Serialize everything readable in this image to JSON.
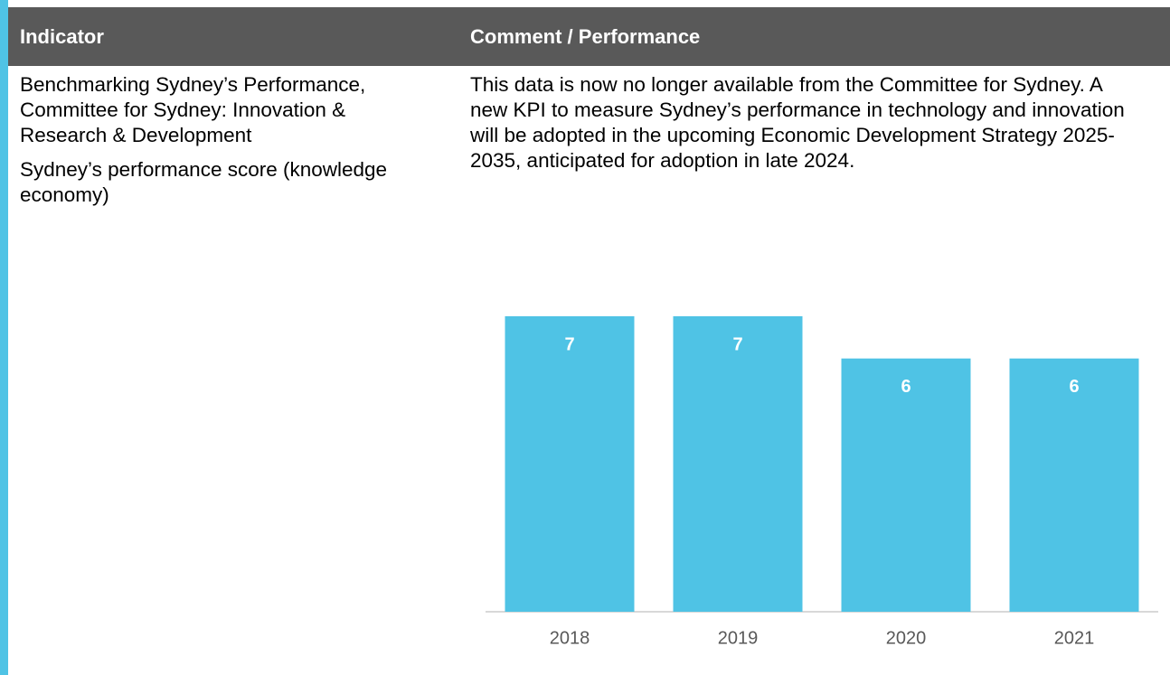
{
  "table": {
    "header": [
      "Indicator",
      "Comment / Performance"
    ],
    "rows": [
      [
        [
          "Benchmarking Sydney’s Performance, Committee for Sydney: Innovation & Research & Development",
          "Sydney’s performance score (knowledge economy)"
        ],
        "This data is now no longer available from the Committee for Sydney. A new KPI to measure Sydney’s performance in technology and innovation will be adopted in the upcoming Economic Development Strategy 2025-2035, anticipated for adoption in late 2024."
      ]
    ]
  },
  "chart_data": {
    "type": "bar",
    "categories": [
      "2018",
      "2019",
      "2020",
      "2021"
    ],
    "values": [
      7,
      7,
      6,
      6
    ],
    "color": "#4fc3e5"
  }
}
